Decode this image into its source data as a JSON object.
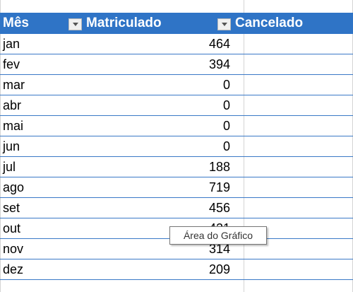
{
  "table": {
    "headers": {
      "mes": "Mês",
      "matriculado": "Matriculado",
      "cancelado": "Cancelado"
    },
    "rows": [
      {
        "mes": "jan",
        "matriculado": "464"
      },
      {
        "mes": "fev",
        "matriculado": "394"
      },
      {
        "mes": "mar",
        "matriculado": "0"
      },
      {
        "mes": "abr",
        "matriculado": "0"
      },
      {
        "mes": "mai",
        "matriculado": "0"
      },
      {
        "mes": "jun",
        "matriculado": "0"
      },
      {
        "mes": "jul",
        "matriculado": "188"
      },
      {
        "mes": "ago",
        "matriculado": "719"
      },
      {
        "mes": "set",
        "matriculado": "456"
      },
      {
        "mes": "out",
        "matriculado": "421"
      },
      {
        "mes": "nov",
        "matriculado": "314"
      },
      {
        "mes": "dez",
        "matriculado": "209"
      }
    ]
  },
  "tooltip": {
    "text": "Área do Gráfico"
  },
  "colors": {
    "header_bg": "#2f74c6",
    "header_text": "#ffffff",
    "row_border": "#3a79c7"
  },
  "icons": {
    "filter_dropdown": "chevron-down-icon"
  }
}
